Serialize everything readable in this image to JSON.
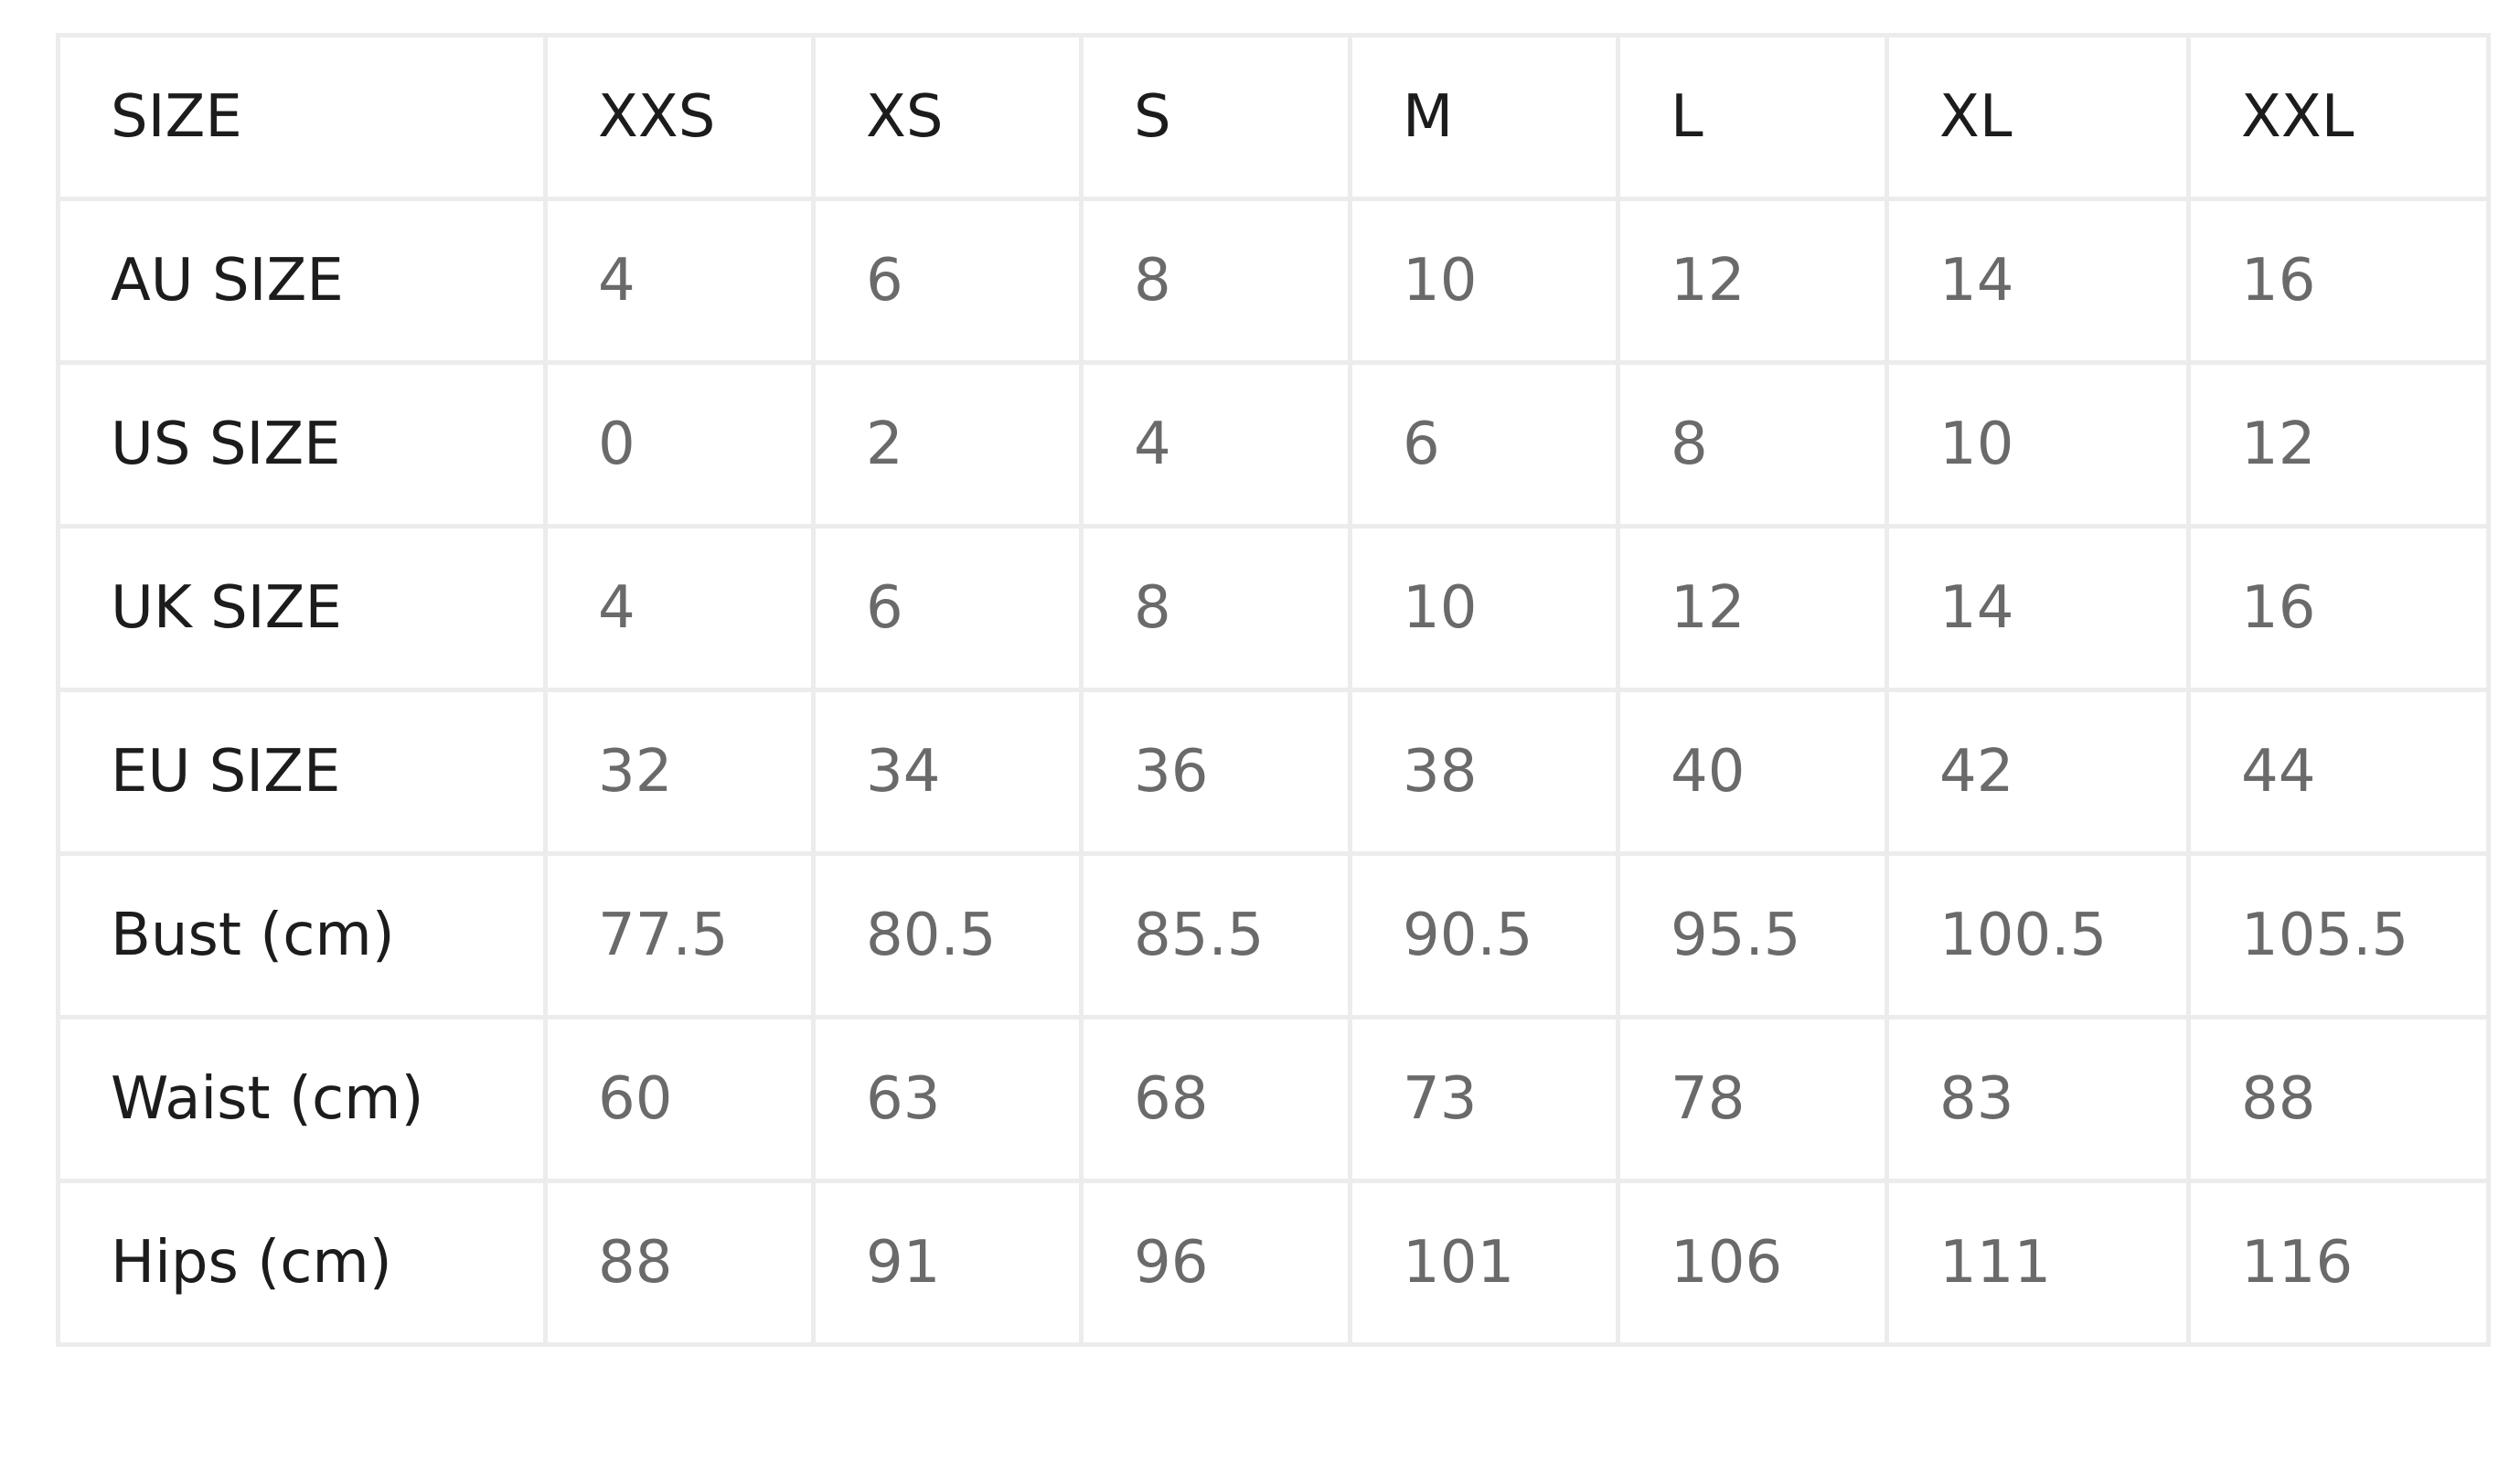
{
  "size_table": {
    "header": {
      "label": "SIZE",
      "sizes": [
        "XXS",
        "XS",
        "S",
        "M",
        "L",
        "XL",
        "XXL"
      ]
    },
    "rows": [
      {
        "label": "AU SIZE",
        "values": [
          "4",
          "6",
          "8",
          "10",
          "12",
          "14",
          "16"
        ]
      },
      {
        "label": "US SIZE",
        "values": [
          "0",
          "2",
          "4",
          "6",
          "8",
          "10",
          "12"
        ]
      },
      {
        "label": "UK SIZE",
        "values": [
          "4",
          "6",
          "8",
          "10",
          "12",
          "14",
          "16"
        ]
      },
      {
        "label": "EU SIZE",
        "values": [
          "32",
          "34",
          "36",
          "38",
          "40",
          "42",
          "44"
        ]
      },
      {
        "label": "Bust (cm)",
        "values": [
          "77.5",
          "80.5",
          "85.5",
          "90.5",
          "95.5",
          "100.5",
          "105.5"
        ]
      },
      {
        "label": "Waist (cm)",
        "values": [
          "60",
          "63",
          "68",
          "73",
          "78",
          "83",
          "88"
        ]
      },
      {
        "label": "Hips (cm)",
        "values": [
          "88",
          "91",
          "96",
          "101",
          "106",
          "111",
          "116"
        ]
      }
    ]
  },
  "colors": {
    "label_text": "#1c1c1c",
    "value_text": "#6a6a6a",
    "border": "#ececec",
    "background": "#ffffff"
  }
}
